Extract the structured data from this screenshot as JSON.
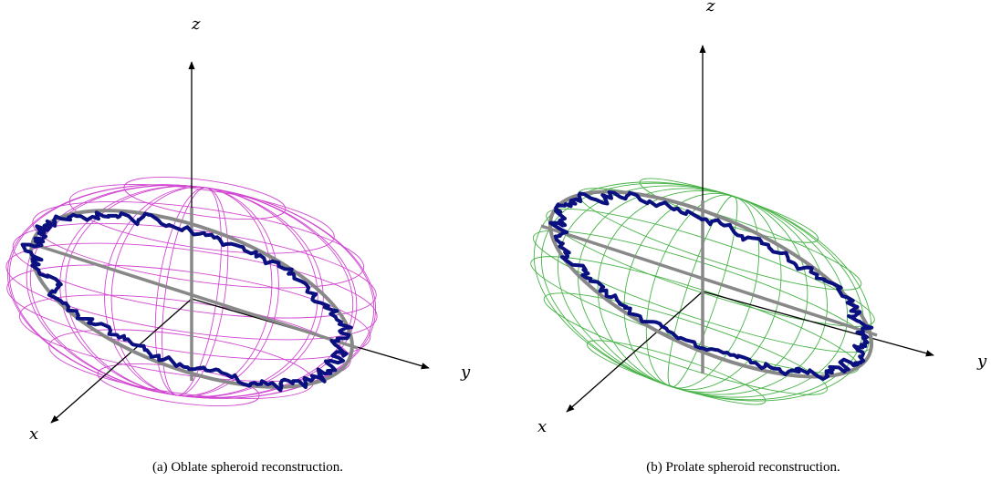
{
  "panels": [
    {
      "id": "a",
      "caption": "(a) Oblate spheroid reconstruction.",
      "mesh_color": "#cc33cc",
      "axes": {
        "x": "x",
        "y": "y",
        "z": "z"
      }
    },
    {
      "id": "b",
      "caption": "(b) Prolate spheroid reconstruction.",
      "mesh_color": "#33aa33",
      "axes": {
        "x": "x",
        "y": "y",
        "z": "z"
      }
    }
  ],
  "colors": {
    "trajectory": "#0a1080",
    "fitted_ellipse": "#888888",
    "axis": "#000000"
  }
}
